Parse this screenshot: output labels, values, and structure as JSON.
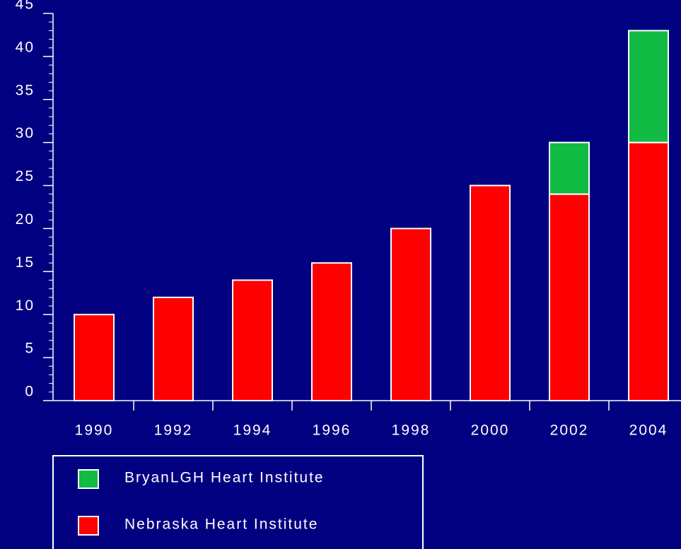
{
  "chart_data": {
    "type": "bar",
    "stacked": true,
    "categories": [
      "1990",
      "1992",
      "1994",
      "1996",
      "1998",
      "2000",
      "2002",
      "2004"
    ],
    "series": [
      {
        "name": "Nebraska Heart Institute",
        "color": "#ff0000",
        "values": [
          10,
          12,
          14,
          16,
          20,
          25,
          24,
          30
        ]
      },
      {
        "name": "BryanLGH Heart Institute",
        "color": "#11bb44",
        "values": [
          null,
          null,
          null,
          null,
          null,
          null,
          6,
          13
        ]
      }
    ],
    "ylim": [
      0,
      45
    ],
    "yticks": [
      0,
      5,
      10,
      15,
      20,
      25,
      30,
      35,
      40,
      45
    ],
    "minor_ytick_step": 1
  }
}
